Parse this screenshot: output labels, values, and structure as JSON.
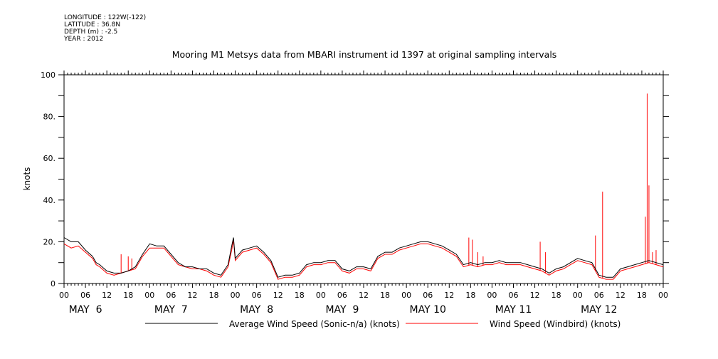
{
  "metadata": {
    "longitude": "LONGITUDE : 122W(-122)",
    "latitude": "LATITUDE : 36.8N",
    "depth": "DEPTH (m) : -2.5",
    "year": "YEAR : 2012"
  },
  "chart_data": {
    "type": "line",
    "title": "Mooring M1 Metsys data from MBARI instrument id 1397 at original sampling intervals",
    "ylabel": "knots",
    "xlabel": "",
    "xlim_hours": [
      0,
      168
    ],
    "ylim": [
      0,
      100
    ],
    "y_ticks": [
      {
        "value": 0,
        "label": "0"
      },
      {
        "value": 20,
        "label": "20."
      },
      {
        "value": 40,
        "label": "40."
      },
      {
        "value": 60,
        "label": "60."
      },
      {
        "value": 80,
        "label": "80."
      },
      {
        "value": 100,
        "label": "100"
      }
    ],
    "x_tick_labels": [
      "00",
      "06",
      "12",
      "18",
      "00",
      "06",
      "12",
      "18",
      "00",
      "06",
      "12",
      "18",
      "00",
      "06",
      "12",
      "18",
      "00",
      "06",
      "12",
      "18",
      "00",
      "06",
      "12",
      "18",
      "00",
      "06",
      "12",
      "18",
      "00"
    ],
    "day_labels": [
      "MAY  6",
      "MAY  7",
      "MAY  8",
      "MAY  9",
      "MAY 10",
      "MAY 11",
      "MAY 12"
    ],
    "grid": false,
    "legend_position": "bottom",
    "series": [
      {
        "name": "Average Wind Speed (Sonic-n/a) (knots)",
        "color": "#000000",
        "x_hours": [
          0,
          2,
          4,
          6,
          8,
          9,
          10,
          12,
          14,
          16,
          18,
          20,
          22,
          24,
          26,
          28,
          30,
          32,
          34,
          36,
          38,
          40,
          42,
          44,
          46,
          47,
          47.5,
          48,
          50,
          52,
          54,
          56,
          58,
          60,
          62,
          64,
          66,
          68,
          70,
          72,
          74,
          76,
          78,
          80,
          82,
          84,
          86,
          88,
          90,
          92,
          94,
          96,
          98,
          100,
          102,
          104,
          106,
          108,
          110,
          112,
          114,
          116,
          118,
          120,
          122,
          124,
          126,
          128,
          130,
          132,
          134,
          136,
          138,
          140,
          142,
          144,
          146,
          148,
          150,
          152,
          154,
          156,
          158,
          160,
          162,
          164,
          166,
          168
        ],
        "values": [
          22,
          20,
          20,
          16,
          13,
          10,
          9,
          6,
          5,
          5,
          6,
          8,
          14,
          19,
          18,
          18,
          14,
          10,
          8,
          8,
          7,
          7,
          5,
          4,
          9,
          18,
          22,
          12,
          16,
          17,
          18,
          15,
          11,
          3,
          4,
          4,
          5,
          9,
          10,
          10,
          11,
          11,
          7,
          6,
          8,
          8,
          7,
          13,
          15,
          15,
          17,
          18,
          19,
          20,
          20,
          19,
          18,
          16,
          14,
          9,
          10,
          9,
          10,
          10,
          11,
          10,
          10,
          10,
          9,
          8,
          7,
          5,
          7,
          8,
          10,
          12,
          11,
          10,
          4,
          3,
          3,
          7,
          8,
          9,
          10,
          11,
          10,
          9
        ]
      },
      {
        "name": "Wind Speed (Windbird) (knots)",
        "color": "#ff0000",
        "x_hours": [
          0,
          2,
          4,
          6,
          8,
          9,
          10,
          12,
          14,
          16,
          18,
          20,
          22,
          24,
          26,
          28,
          30,
          32,
          34,
          36,
          38,
          40,
          42,
          44,
          46,
          47,
          47.5,
          48,
          50,
          52,
          54,
          56,
          58,
          60,
          62,
          64,
          66,
          68,
          70,
          72,
          74,
          76,
          78,
          80,
          82,
          84,
          86,
          88,
          90,
          92,
          94,
          96,
          98,
          100,
          102,
          104,
          106,
          108,
          110,
          112,
          114,
          116,
          118,
          120,
          122,
          124,
          126,
          128,
          130,
          132,
          134,
          136,
          138,
          140,
          142,
          144,
          146,
          148,
          150,
          152,
          154,
          156,
          158,
          160,
          162,
          164,
          166,
          168
        ],
        "values": [
          19,
          17,
          18,
          15,
          12,
          9,
          8,
          5,
          4,
          5,
          6,
          7,
          13,
          17,
          17,
          17,
          13,
          9,
          8,
          7,
          7,
          6,
          4,
          3,
          8,
          16,
          21,
          11,
          15,
          16,
          17,
          14,
          10,
          2,
          3,
          3,
          4,
          8,
          9,
          9,
          10,
          10,
          6,
          5,
          7,
          7,
          6,
          12,
          14,
          14,
          16,
          17,
          18,
          19,
          19,
          18,
          17,
          15,
          13,
          8,
          9,
          8,
          9,
          9,
          10,
          9,
          9,
          9,
          8,
          7,
          6,
          4,
          6,
          7,
          9,
          11,
          10,
          9,
          3,
          2,
          2,
          6,
          7,
          8,
          9,
          10,
          9,
          8
        ],
        "spikes": [
          {
            "x": 16,
            "value": 14
          },
          {
            "x": 18,
            "value": 13
          },
          {
            "x": 19,
            "value": 12
          },
          {
            "x": 113.5,
            "value": 22
          },
          {
            "x": 114.5,
            "value": 21
          },
          {
            "x": 116,
            "value": 15
          },
          {
            "x": 117.5,
            "value": 13
          },
          {
            "x": 133.5,
            "value": 20
          },
          {
            "x": 135,
            "value": 15
          },
          {
            "x": 149,
            "value": 23
          },
          {
            "x": 151,
            "value": 44
          },
          {
            "x": 163,
            "value": 32
          },
          {
            "x": 163.5,
            "value": 91
          },
          {
            "x": 164,
            "value": 47
          },
          {
            "x": 165,
            "value": 15
          },
          {
            "x": 166,
            "value": 16
          }
        ]
      }
    ]
  }
}
